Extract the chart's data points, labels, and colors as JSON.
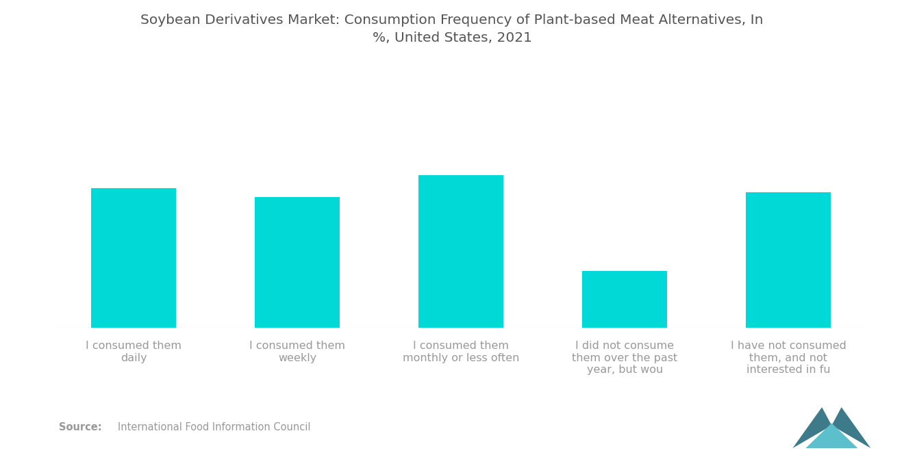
{
  "title": "Soybean Derivatives Market: Consumption Frequency of Plant-based Meat Alternatives, In\n%, United States, 2021",
  "categories": [
    "I consumed them\ndaily",
    "I consumed them\nweekly",
    "I consumed them\nmonthly or less often",
    "I did not consume\nthem over the past\nyear, but wou",
    "I have not consumed\nthem, and not\ninterested in fu"
  ],
  "values": [
    32,
    30,
    35,
    13,
    31
  ],
  "bar_color": "#00D9D5",
  "background_color": "#ffffff",
  "title_color": "#555555",
  "label_color": "#999999",
  "source_bold": "Source:",
  "source_text": "International Food Information Council",
  "ylim": [
    0,
    48
  ],
  "figsize": [
    13.2,
    6.65
  ],
  "dpi": 100
}
